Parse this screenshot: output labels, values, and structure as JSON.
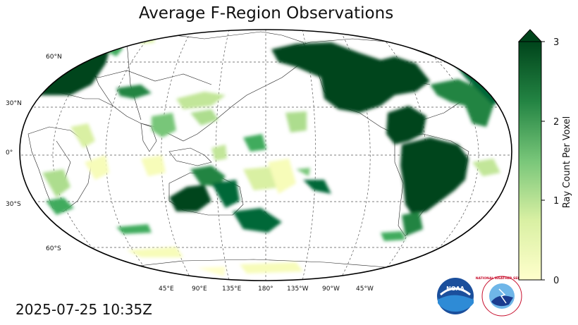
{
  "title": "Average F-Region Observations",
  "timestamp": "2025-07-25 10:35Z",
  "colorbar": {
    "label": "Ray Count Per Voxel",
    "min": 0,
    "max": 3,
    "ticks": [
      "0",
      "1",
      "2",
      "3"
    ],
    "extend": "max",
    "color_low": "#ffffcc",
    "color_mid": "#78c679",
    "color_high": "#00441b"
  },
  "latitude_labels": [
    "60°N",
    "30°N",
    "0°",
    "30°S",
    "60°S"
  ],
  "longitude_labels": [
    "45°E",
    "90°E",
    "135°E",
    "180°",
    "135°W",
    "90°W",
    "45°W"
  ],
  "logos": {
    "noaa": "NOAA",
    "nws": "NATIONAL WEATHER SERVICE"
  },
  "gridline_style": "dashed",
  "projection": "robinson-like",
  "central_longitude": 180
}
